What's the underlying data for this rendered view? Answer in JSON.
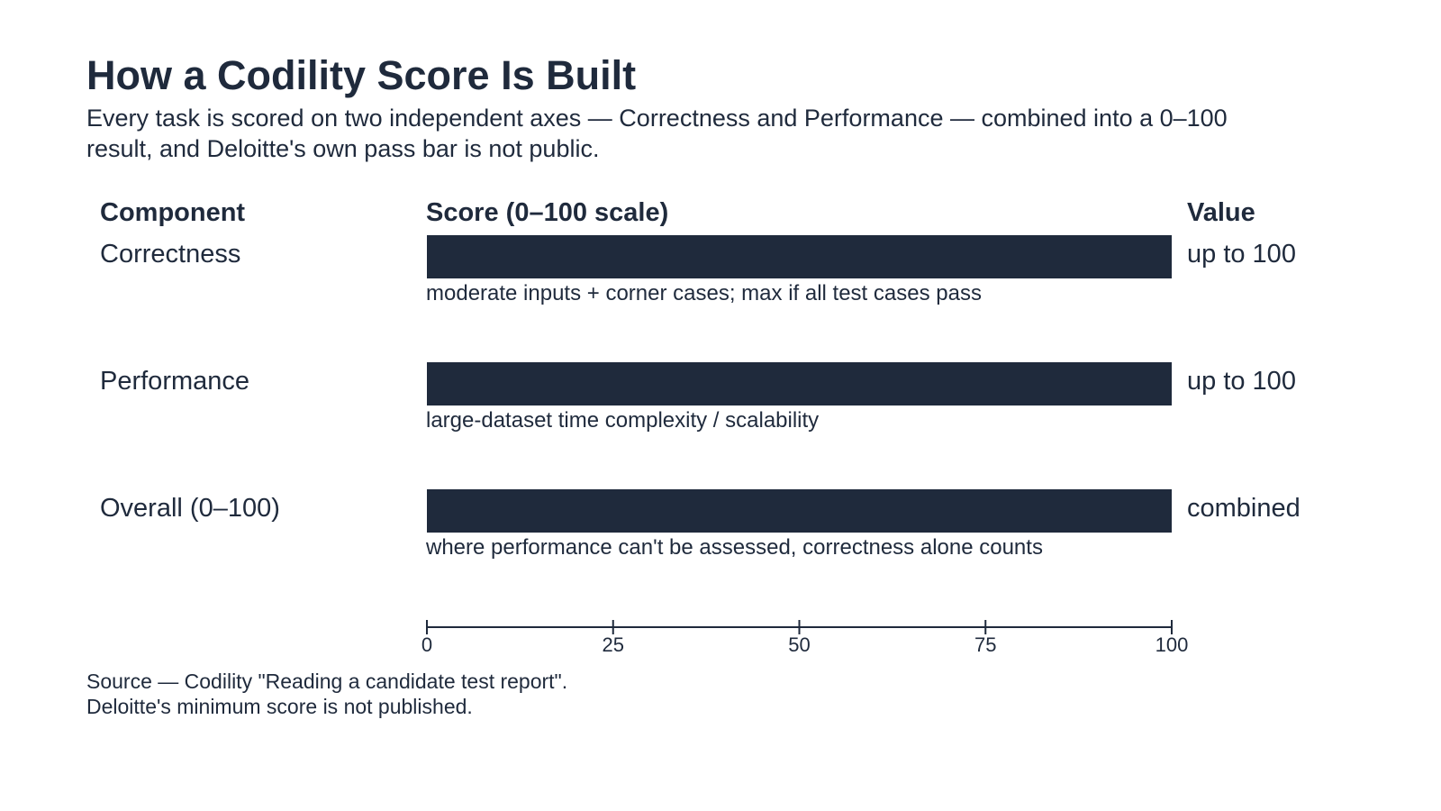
{
  "header": {
    "title": "How a Codility Score Is Built",
    "subtitle": "Every task is scored on two independent axes — Correctness and Performance — combined into a 0–100 result, and Deloitte's own pass bar is not public."
  },
  "columns": {
    "component": "Component",
    "score": "Score (0–100 scale)",
    "value": "Value"
  },
  "chart_data": {
    "type": "bar",
    "orientation": "horizontal",
    "categories": [
      "Correctness",
      "Performance",
      "Overall (0–100)"
    ],
    "values": [
      100,
      100,
      100
    ],
    "value_labels": [
      "up to 100",
      "up to 100",
      "combined"
    ],
    "notes": [
      "moderate inputs + corner cases; max if all test cases pass",
      "large-dataset time complexity / scalability",
      "where performance can't be assessed, correctness alone counts"
    ],
    "xlim": [
      0,
      100
    ],
    "xticks": [
      0,
      25,
      50,
      75,
      100
    ],
    "xlabel": "Score (0–100 scale)",
    "grid": false,
    "legend": "none",
    "bar_color": "#1f2a3c"
  },
  "footer": {
    "source_line1": "Source — Codility \"Reading a candidate test report\".",
    "source_line2": "Deloitte's minimum score is not published."
  }
}
